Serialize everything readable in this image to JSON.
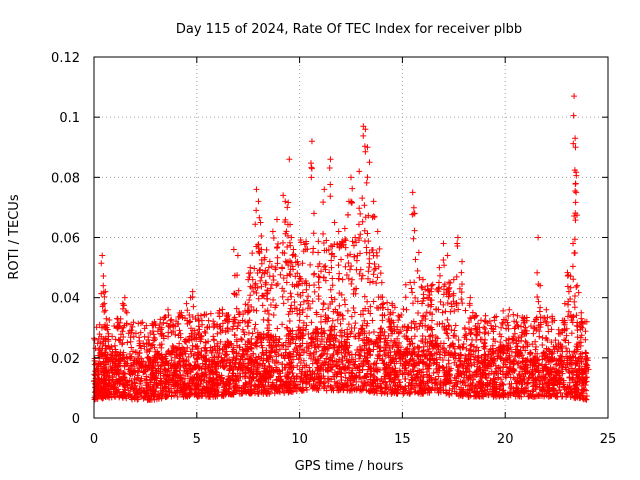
{
  "chart_data": {
    "type": "scatter",
    "title": "Day 115 of 2024, Rate Of TEC Index for receiver plbb",
    "xlabel": "GPS time / hours",
    "ylabel": "ROTI / TECUs",
    "xlim": [
      0,
      25
    ],
    "ylim": [
      0,
      0.12
    ],
    "xticks": [
      0,
      5,
      10,
      15,
      20,
      25
    ],
    "xtick_labels": [
      "0",
      "5",
      "10",
      "15",
      "20",
      "25"
    ],
    "yticks": [
      0,
      0.02,
      0.04,
      0.06,
      0.08,
      0.1,
      0.12
    ],
    "ytick_labels": [
      "0",
      "0.02",
      "0.04",
      "0.06",
      "0.08",
      "0.1",
      "0.12"
    ],
    "grid": true,
    "marker": "+",
    "color": "#ff0000",
    "series": [
      {
        "name": "ROTI",
        "points": [
          [
            0.1,
            0.012
          ],
          [
            0.2,
            0.018
          ],
          [
            0.3,
            0.025
          ],
          [
            0.4,
            0.054
          ],
          [
            0.45,
            0.044
          ],
          [
            0.5,
            0.038
          ],
          [
            0.55,
            0.042
          ],
          [
            0.6,
            0.033
          ],
          [
            0.7,
            0.028
          ],
          [
            0.9,
            0.022
          ],
          [
            1.2,
            0.026
          ],
          [
            1.4,
            0.038
          ],
          [
            1.5,
            0.04
          ],
          [
            1.6,
            0.035
          ],
          [
            1.8,
            0.031
          ],
          [
            2.2,
            0.024
          ],
          [
            2.6,
            0.02
          ],
          [
            3.0,
            0.022
          ],
          [
            3.3,
            0.03
          ],
          [
            3.6,
            0.036
          ],
          [
            3.8,
            0.031
          ],
          [
            4.2,
            0.028
          ],
          [
            4.5,
            0.038
          ],
          [
            4.7,
            0.04
          ],
          [
            4.8,
            0.042
          ],
          [
            5.2,
            0.034
          ],
          [
            5.5,
            0.03
          ],
          [
            6.0,
            0.028
          ],
          [
            6.5,
            0.032
          ],
          [
            6.8,
            0.056
          ],
          [
            7.0,
            0.054
          ],
          [
            7.5,
            0.046
          ],
          [
            7.6,
            0.05
          ],
          [
            7.9,
            0.076
          ],
          [
            8.0,
            0.072
          ],
          [
            8.1,
            0.065
          ],
          [
            8.3,
            0.048
          ],
          [
            8.5,
            0.05
          ],
          [
            8.7,
            0.062
          ],
          [
            8.9,
            0.066
          ],
          [
            9.2,
            0.074
          ],
          [
            9.3,
            0.072
          ],
          [
            9.4,
            0.07
          ],
          [
            9.5,
            0.086
          ],
          [
            9.6,
            0.06
          ],
          [
            9.7,
            0.056
          ],
          [
            9.9,
            0.052
          ],
          [
            10.0,
            0.047
          ],
          [
            10.3,
            0.056
          ],
          [
            10.6,
            0.092
          ],
          [
            10.7,
            0.068
          ],
          [
            10.9,
            0.055
          ],
          [
            11.2,
            0.076
          ],
          [
            11.3,
            0.059
          ],
          [
            11.5,
            0.086
          ],
          [
            11.7,
            0.065
          ],
          [
            11.9,
            0.062
          ],
          [
            12.2,
            0.063
          ],
          [
            12.4,
            0.072
          ],
          [
            12.5,
            0.08
          ],
          [
            12.7,
            0.06
          ],
          [
            12.9,
            0.082
          ],
          [
            13.1,
            0.097
          ],
          [
            13.2,
            0.096
          ],
          [
            13.3,
            0.09
          ],
          [
            13.4,
            0.085
          ],
          [
            13.6,
            0.072
          ],
          [
            13.8,
            0.062
          ],
          [
            14.0,
            0.045
          ],
          [
            14.5,
            0.038
          ],
          [
            14.8,
            0.034
          ],
          [
            15.2,
            0.036
          ],
          [
            15.5,
            0.075
          ],
          [
            15.6,
            0.068
          ],
          [
            15.8,
            0.055
          ],
          [
            16.0,
            0.046
          ],
          [
            16.2,
            0.04
          ],
          [
            16.4,
            0.042
          ],
          [
            16.8,
            0.05
          ],
          [
            17.0,
            0.058
          ],
          [
            17.2,
            0.054
          ],
          [
            17.5,
            0.046
          ],
          [
            17.7,
            0.06
          ],
          [
            17.9,
            0.052
          ],
          [
            18.3,
            0.04
          ],
          [
            18.6,
            0.034
          ],
          [
            19.0,
            0.028
          ],
          [
            19.4,
            0.024
          ],
          [
            19.8,
            0.03
          ],
          [
            20.2,
            0.036
          ],
          [
            20.6,
            0.034
          ],
          [
            21.0,
            0.028
          ],
          [
            21.4,
            0.03
          ],
          [
            21.6,
            0.06
          ],
          [
            21.7,
            0.044
          ],
          [
            22.0,
            0.036
          ],
          [
            22.3,
            0.033
          ],
          [
            22.6,
            0.028
          ],
          [
            22.9,
            0.038
          ],
          [
            23.1,
            0.042
          ],
          [
            23.3,
            0.058
          ],
          [
            23.35,
            0.107
          ],
          [
            23.4,
            0.093
          ],
          [
            23.42,
            0.09
          ],
          [
            23.45,
            0.075
          ],
          [
            23.5,
            0.044
          ],
          [
            23.7,
            0.035
          ],
          [
            23.9,
            0.026
          ],
          [
            24.0,
            0.02
          ]
        ],
        "dense_band": [
          [
            0.0,
            0.006,
            0.018
          ],
          [
            1.0,
            0.007,
            0.022
          ],
          [
            2.0,
            0.006,
            0.02
          ],
          [
            3.0,
            0.006,
            0.02
          ],
          [
            4.0,
            0.007,
            0.024
          ],
          [
            5.0,
            0.007,
            0.022
          ],
          [
            6.0,
            0.007,
            0.024
          ],
          [
            7.0,
            0.008,
            0.026
          ],
          [
            8.0,
            0.008,
            0.028
          ],
          [
            9.0,
            0.008,
            0.028
          ],
          [
            10.0,
            0.009,
            0.03
          ],
          [
            11.0,
            0.009,
            0.03
          ],
          [
            12.0,
            0.009,
            0.03
          ],
          [
            13.0,
            0.009,
            0.03
          ],
          [
            14.0,
            0.008,
            0.028
          ],
          [
            15.0,
            0.008,
            0.026
          ],
          [
            16.0,
            0.008,
            0.026
          ],
          [
            17.0,
            0.008,
            0.026
          ],
          [
            18.0,
            0.007,
            0.024
          ],
          [
            19.0,
            0.007,
            0.022
          ],
          [
            20.0,
            0.007,
            0.024
          ],
          [
            21.0,
            0.007,
            0.022
          ],
          [
            22.0,
            0.007,
            0.022
          ],
          [
            23.0,
            0.007,
            0.024
          ],
          [
            24.0,
            0.006,
            0.02
          ]
        ]
      }
    ]
  }
}
